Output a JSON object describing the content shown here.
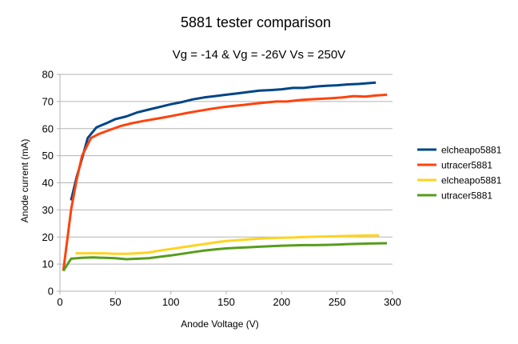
{
  "chart_data": {
    "type": "line",
    "title": "5881 tester comparison",
    "subtitle": "Vg = -14 & Vg = -26V Vs = 250V",
    "xlabel": "Anode Voltage (V)",
    "ylabel": "Anode current (mA)",
    "xlim": [
      0,
      300
    ],
    "ylim": [
      0,
      80
    ],
    "xticks": [
      0,
      50,
      100,
      150,
      200,
      250,
      300
    ],
    "yticks": [
      0,
      10,
      20,
      30,
      40,
      50,
      60,
      70,
      80
    ],
    "grid": true,
    "legend_position": "right",
    "series": [
      {
        "name": "elcheapo5881",
        "color": "#004586",
        "points": [
          [
            10,
            33.5
          ],
          [
            15,
            42
          ],
          [
            20,
            49
          ],
          [
            25,
            56.5
          ],
          [
            33,
            60.5
          ],
          [
            42,
            62
          ],
          [
            50,
            63.5
          ],
          [
            60,
            64.5
          ],
          [
            70,
            66
          ],
          [
            80,
            67
          ],
          [
            90,
            68
          ],
          [
            100,
            69
          ],
          [
            110,
            69.8
          ],
          [
            120,
            70.8
          ],
          [
            130,
            71.5
          ],
          [
            140,
            72
          ],
          [
            150,
            72.5
          ],
          [
            160,
            73
          ],
          [
            170,
            73.5
          ],
          [
            180,
            74
          ],
          [
            190,
            74.2
          ],
          [
            200,
            74.5
          ],
          [
            210,
            75
          ],
          [
            220,
            75
          ],
          [
            230,
            75.5
          ],
          [
            240,
            75.8
          ],
          [
            250,
            76
          ],
          [
            260,
            76.3
          ],
          [
            270,
            76.5
          ],
          [
            280,
            76.8
          ],
          [
            285,
            77
          ]
        ]
      },
      {
        "name": "utracer5881",
        "color": "#ff420e",
        "points": [
          [
            3,
            7.5
          ],
          [
            10,
            30
          ],
          [
            15,
            41
          ],
          [
            20,
            50
          ],
          [
            28,
            56.5
          ],
          [
            35,
            58
          ],
          [
            45,
            59.5
          ],
          [
            55,
            61
          ],
          [
            65,
            62
          ],
          [
            75,
            62.8
          ],
          [
            85,
            63.5
          ],
          [
            95,
            64.2
          ],
          [
            105,
            65
          ],
          [
            115,
            65.8
          ],
          [
            125,
            66.5
          ],
          [
            135,
            67.2
          ],
          [
            145,
            67.8
          ],
          [
            155,
            68.3
          ],
          [
            165,
            68.7
          ],
          [
            175,
            69.2
          ],
          [
            185,
            69.6
          ],
          [
            195,
            70
          ],
          [
            205,
            70
          ],
          [
            215,
            70.5
          ],
          [
            225,
            70.8
          ],
          [
            235,
            71
          ],
          [
            245,
            71.2
          ],
          [
            255,
            71.5
          ],
          [
            265,
            72
          ],
          [
            275,
            71.8
          ],
          [
            285,
            72.2
          ],
          [
            295,
            72.5
          ]
        ]
      },
      {
        "name": "elcheapo5881",
        "color": "#ffd320",
        "points": [
          [
            14,
            14
          ],
          [
            20,
            14
          ],
          [
            30,
            14
          ],
          [
            40,
            14
          ],
          [
            50,
            13.8
          ],
          [
            60,
            13.8
          ],
          [
            70,
            14
          ],
          [
            80,
            14.3
          ],
          [
            90,
            15
          ],
          [
            100,
            15.6
          ],
          [
            110,
            16.2
          ],
          [
            120,
            16.8
          ],
          [
            130,
            17.4
          ],
          [
            140,
            18
          ],
          [
            150,
            18.5
          ],
          [
            160,
            18.8
          ],
          [
            170,
            19.1
          ],
          [
            180,
            19.4
          ],
          [
            190,
            19.6
          ],
          [
            200,
            19.7
          ],
          [
            210,
            19.8
          ],
          [
            220,
            20
          ],
          [
            230,
            20.1
          ],
          [
            240,
            20.2
          ],
          [
            250,
            20.3
          ],
          [
            260,
            20.4
          ],
          [
            270,
            20.5
          ],
          [
            280,
            20.6
          ],
          [
            288,
            20.6
          ]
        ]
      },
      {
        "name": "utracer5881",
        "color": "#579d1c",
        "points": [
          [
            3,
            7.5
          ],
          [
            10,
            12
          ],
          [
            20,
            12.3
          ],
          [
            30,
            12.5
          ],
          [
            40,
            12.3
          ],
          [
            50,
            12.2
          ],
          [
            60,
            11.8
          ],
          [
            70,
            12
          ],
          [
            80,
            12.2
          ],
          [
            90,
            12.7
          ],
          [
            100,
            13.2
          ],
          [
            110,
            13.8
          ],
          [
            120,
            14.4
          ],
          [
            130,
            15
          ],
          [
            140,
            15.4
          ],
          [
            150,
            15.8
          ],
          [
            160,
            16
          ],
          [
            170,
            16.2
          ],
          [
            180,
            16.4
          ],
          [
            190,
            16.6
          ],
          [
            200,
            16.8
          ],
          [
            210,
            16.9
          ],
          [
            220,
            17
          ],
          [
            230,
            17
          ],
          [
            240,
            17.1
          ],
          [
            250,
            17.2
          ],
          [
            260,
            17.4
          ],
          [
            270,
            17.5
          ],
          [
            280,
            17.6
          ],
          [
            295,
            17.7
          ]
        ]
      }
    ]
  }
}
